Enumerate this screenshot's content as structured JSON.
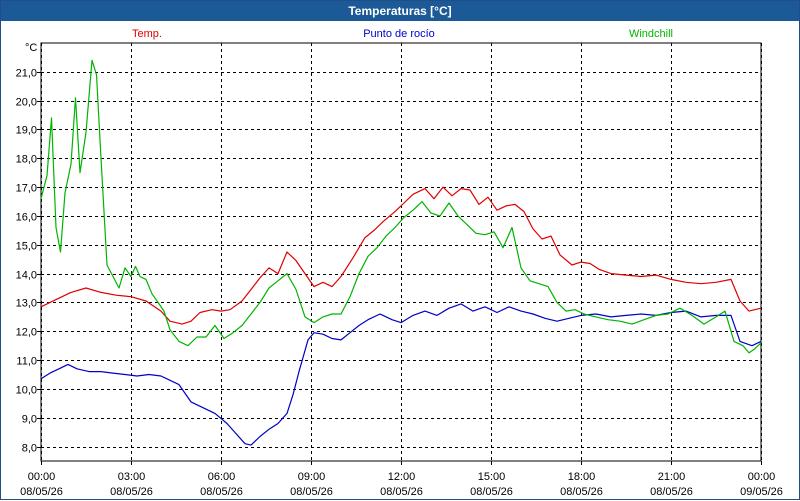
{
  "window": {
    "title": "Temperaturas [°C]"
  },
  "chart_data": {
    "type": "line",
    "title": "Temperaturas [°C]",
    "ylabel": "°C",
    "xlabel": "",
    "ylim": [
      7.5,
      22
    ],
    "xlim": [
      0,
      24
    ],
    "grid": true,
    "legend_placement": "top",
    "y_ticks": [
      8,
      9,
      10,
      11,
      12,
      13,
      14,
      15,
      16,
      17,
      18,
      19,
      20,
      21
    ],
    "y_tick_labels": [
      "8,0",
      "9,0",
      "10,0",
      "11,0",
      "12,0",
      "13,0",
      "14,0",
      "15,0",
      "16,0",
      "17,0",
      "18,0",
      "19,0",
      "20,0",
      "21,0"
    ],
    "x_ticks": [
      {
        "hour": 0,
        "time": "00:00",
        "date": "08/05/26"
      },
      {
        "hour": 3,
        "time": "03:00",
        "date": "08/05/26"
      },
      {
        "hour": 6,
        "time": "06:00",
        "date": "08/05/26"
      },
      {
        "hour": 9,
        "time": "09:00",
        "date": "08/05/26"
      },
      {
        "hour": 12,
        "time": "12:00",
        "date": "08/05/26"
      },
      {
        "hour": 15,
        "time": "15:00",
        "date": "08/05/26"
      },
      {
        "hour": 18,
        "time": "18:00",
        "date": "08/05/26"
      },
      {
        "hour": 21,
        "time": "21:00",
        "date": "08/05/26"
      },
      {
        "hour": 24,
        "time": "00:00",
        "date": "09/05/26"
      }
    ],
    "series": [
      {
        "name": "Temp.",
        "color": "#e00000",
        "points": [
          [
            0,
            12.85
          ],
          [
            0.5,
            13.1
          ],
          [
            1,
            13.35
          ],
          [
            1.5,
            13.5
          ],
          [
            2,
            13.35
          ],
          [
            2.5,
            13.25
          ],
          [
            3,
            13.2
          ],
          [
            3.5,
            13.05
          ],
          [
            4,
            12.7
          ],
          [
            4.3,
            12.35
          ],
          [
            4.7,
            12.25
          ],
          [
            5,
            12.35
          ],
          [
            5.3,
            12.65
          ],
          [
            5.7,
            12.75
          ],
          [
            6,
            12.7
          ],
          [
            6.3,
            12.75
          ],
          [
            6.7,
            13.05
          ],
          [
            7,
            13.45
          ],
          [
            7.3,
            13.85
          ],
          [
            7.6,
            14.2
          ],
          [
            7.9,
            14.0
          ],
          [
            8.2,
            14.75
          ],
          [
            8.5,
            14.45
          ],
          [
            8.8,
            14.0
          ],
          [
            9.1,
            13.55
          ],
          [
            9.4,
            13.7
          ],
          [
            9.7,
            13.55
          ],
          [
            10.0,
            13.9
          ],
          [
            10.4,
            14.55
          ],
          [
            10.8,
            15.25
          ],
          [
            11.1,
            15.5
          ],
          [
            11.4,
            15.8
          ],
          [
            11.8,
            16.15
          ],
          [
            12.1,
            16.45
          ],
          [
            12.4,
            16.75
          ],
          [
            12.8,
            16.95
          ],
          [
            13.1,
            16.6
          ],
          [
            13.4,
            17.0
          ],
          [
            13.7,
            16.7
          ],
          [
            14.0,
            16.95
          ],
          [
            14.3,
            16.9
          ],
          [
            14.6,
            16.4
          ],
          [
            14.9,
            16.65
          ],
          [
            15.2,
            16.2
          ],
          [
            15.5,
            16.35
          ],
          [
            15.8,
            16.4
          ],
          [
            16.1,
            16.15
          ],
          [
            16.4,
            15.55
          ],
          [
            16.7,
            15.2
          ],
          [
            17.0,
            15.3
          ],
          [
            17.3,
            14.65
          ],
          [
            17.7,
            14.3
          ],
          [
            18.0,
            14.4
          ],
          [
            18.3,
            14.35
          ],
          [
            18.6,
            14.15
          ],
          [
            19.0,
            14.0
          ],
          [
            19.5,
            13.95
          ],
          [
            20.0,
            13.9
          ],
          [
            20.5,
            13.95
          ],
          [
            21.0,
            13.8
          ],
          [
            21.5,
            13.7
          ],
          [
            22.0,
            13.65
          ],
          [
            22.5,
            13.7
          ],
          [
            23.0,
            13.8
          ],
          [
            23.3,
            13.05
          ],
          [
            23.6,
            12.7
          ],
          [
            24.0,
            12.8
          ]
        ]
      },
      {
        "name": "Punto de rocío",
        "color": "#0000c8",
        "points": [
          [
            0,
            10.35
          ],
          [
            0.3,
            10.55
          ],
          [
            0.6,
            10.7
          ],
          [
            0.9,
            10.85
          ],
          [
            1.2,
            10.7
          ],
          [
            1.6,
            10.6
          ],
          [
            2,
            10.6
          ],
          [
            2.4,
            10.55
          ],
          [
            2.8,
            10.5
          ],
          [
            3.2,
            10.45
          ],
          [
            3.6,
            10.5
          ],
          [
            4.0,
            10.45
          ],
          [
            4.3,
            10.3
          ],
          [
            4.6,
            10.15
          ],
          [
            5.0,
            9.55
          ],
          [
            5.4,
            9.35
          ],
          [
            5.8,
            9.15
          ],
          [
            6.2,
            8.8
          ],
          [
            6.5,
            8.45
          ],
          [
            6.8,
            8.1
          ],
          [
            7.0,
            8.05
          ],
          [
            7.3,
            8.35
          ],
          [
            7.6,
            8.6
          ],
          [
            7.9,
            8.8
          ],
          [
            8.2,
            9.15
          ],
          [
            8.4,
            9.8
          ],
          [
            8.6,
            10.6
          ],
          [
            8.9,
            11.7
          ],
          [
            9.1,
            11.95
          ],
          [
            9.4,
            11.9
          ],
          [
            9.7,
            11.75
          ],
          [
            10.0,
            11.7
          ],
          [
            10.3,
            11.95
          ],
          [
            10.6,
            12.2
          ],
          [
            10.9,
            12.4
          ],
          [
            11.3,
            12.6
          ],
          [
            11.7,
            12.4
          ],
          [
            12.0,
            12.3
          ],
          [
            12.4,
            12.55
          ],
          [
            12.8,
            12.7
          ],
          [
            13.2,
            12.55
          ],
          [
            13.6,
            12.8
          ],
          [
            14.0,
            12.95
          ],
          [
            14.4,
            12.7
          ],
          [
            14.8,
            12.85
          ],
          [
            15.2,
            12.65
          ],
          [
            15.6,
            12.85
          ],
          [
            16.0,
            12.7
          ],
          [
            16.4,
            12.6
          ],
          [
            16.8,
            12.45
          ],
          [
            17.2,
            12.35
          ],
          [
            17.6,
            12.45
          ],
          [
            18.0,
            12.55
          ],
          [
            18.5,
            12.6
          ],
          [
            19.0,
            12.5
          ],
          [
            19.5,
            12.55
          ],
          [
            20.0,
            12.6
          ],
          [
            20.5,
            12.55
          ],
          [
            21.0,
            12.65
          ],
          [
            21.5,
            12.7
          ],
          [
            22.0,
            12.5
          ],
          [
            22.5,
            12.55
          ],
          [
            23.0,
            12.55
          ],
          [
            23.3,
            11.65
          ],
          [
            23.7,
            11.5
          ],
          [
            24.0,
            11.65
          ]
        ]
      },
      {
        "name": "Windchill",
        "color": "#00b400",
        "points": [
          [
            0,
            16.6
          ],
          [
            0.2,
            17.4
          ],
          [
            0.35,
            19.4
          ],
          [
            0.5,
            15.6
          ],
          [
            0.65,
            14.75
          ],
          [
            0.8,
            16.8
          ],
          [
            1.0,
            17.8
          ],
          [
            1.15,
            20.1
          ],
          [
            1.3,
            17.5
          ],
          [
            1.5,
            18.9
          ],
          [
            1.7,
            21.4
          ],
          [
            1.85,
            20.9
          ],
          [
            2.0,
            18.0
          ],
          [
            2.2,
            14.3
          ],
          [
            2.4,
            13.9
          ],
          [
            2.6,
            13.5
          ],
          [
            2.8,
            14.2
          ],
          [
            3.0,
            13.9
          ],
          [
            3.15,
            14.25
          ],
          [
            3.3,
            13.9
          ],
          [
            3.5,
            13.8
          ],
          [
            3.7,
            13.3
          ],
          [
            3.9,
            13.0
          ],
          [
            4.1,
            12.7
          ],
          [
            4.3,
            12.05
          ],
          [
            4.6,
            11.65
          ],
          [
            4.9,
            11.5
          ],
          [
            5.2,
            11.8
          ],
          [
            5.5,
            11.8
          ],
          [
            5.8,
            12.2
          ],
          [
            6.1,
            11.75
          ],
          [
            6.4,
            11.95
          ],
          [
            6.7,
            12.2
          ],
          [
            7.0,
            12.6
          ],
          [
            7.3,
            13.0
          ],
          [
            7.6,
            13.5
          ],
          [
            7.9,
            13.75
          ],
          [
            8.2,
            14.0
          ],
          [
            8.5,
            13.45
          ],
          [
            8.8,
            12.5
          ],
          [
            9.1,
            12.3
          ],
          [
            9.4,
            12.5
          ],
          [
            9.7,
            12.6
          ],
          [
            10.0,
            12.6
          ],
          [
            10.3,
            13.2
          ],
          [
            10.6,
            14.0
          ],
          [
            10.9,
            14.6
          ],
          [
            11.2,
            14.9
          ],
          [
            11.5,
            15.3
          ],
          [
            11.8,
            15.6
          ],
          [
            12.1,
            15.95
          ],
          [
            12.4,
            16.2
          ],
          [
            12.7,
            16.5
          ],
          [
            13.0,
            16.1
          ],
          [
            13.3,
            16.0
          ],
          [
            13.6,
            16.45
          ],
          [
            13.9,
            16.0
          ],
          [
            14.2,
            15.7
          ],
          [
            14.5,
            15.4
          ],
          [
            14.8,
            15.35
          ],
          [
            15.1,
            15.45
          ],
          [
            15.4,
            14.9
          ],
          [
            15.7,
            15.6
          ],
          [
            16.0,
            14.2
          ],
          [
            16.3,
            13.75
          ],
          [
            16.6,
            13.65
          ],
          [
            16.9,
            13.55
          ],
          [
            17.2,
            13.0
          ],
          [
            17.5,
            12.7
          ],
          [
            17.8,
            12.75
          ],
          [
            18.1,
            12.6
          ],
          [
            18.5,
            12.5
          ],
          [
            18.9,
            12.4
          ],
          [
            19.3,
            12.35
          ],
          [
            19.7,
            12.25
          ],
          [
            20.1,
            12.4
          ],
          [
            20.5,
            12.55
          ],
          [
            20.9,
            12.6
          ],
          [
            21.3,
            12.8
          ],
          [
            21.7,
            12.55
          ],
          [
            22.1,
            12.25
          ],
          [
            22.5,
            12.5
          ],
          [
            22.8,
            12.7
          ],
          [
            23.1,
            11.65
          ],
          [
            23.4,
            11.5
          ],
          [
            23.6,
            11.25
          ],
          [
            23.8,
            11.4
          ],
          [
            24.0,
            11.6
          ]
        ]
      }
    ]
  }
}
